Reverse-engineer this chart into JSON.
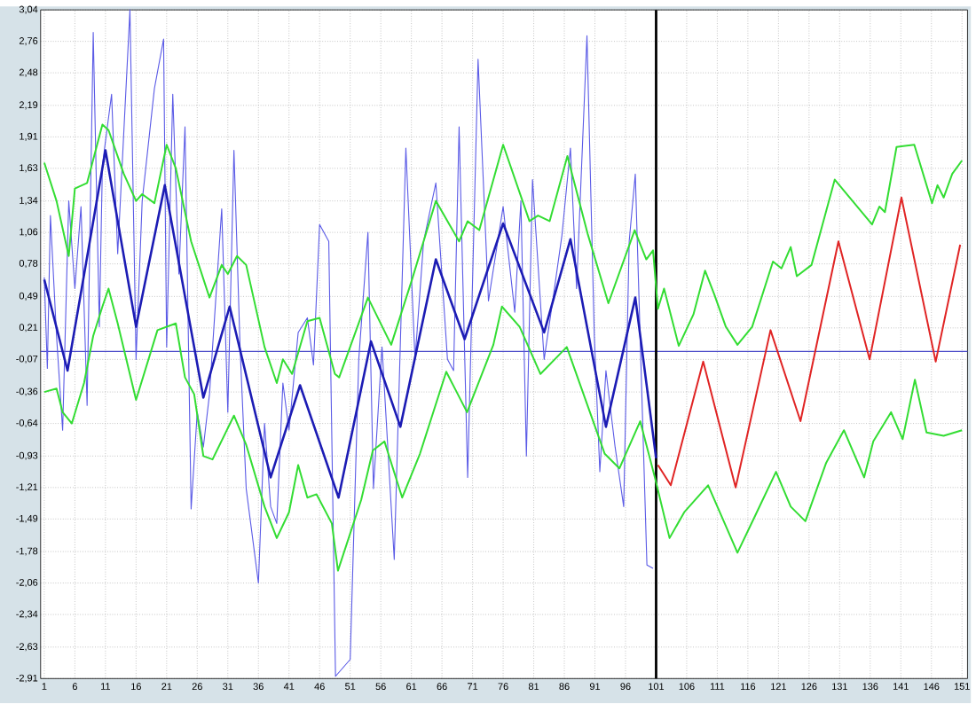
{
  "chart_data": {
    "type": "line",
    "xlim": [
      0.4,
      151.9
    ],
    "ylim": [
      -2.91,
      3.04
    ],
    "xticks": [
      1,
      6,
      11,
      16,
      21,
      26,
      31,
      36,
      41,
      46,
      51,
      56,
      61,
      66,
      71,
      76,
      81,
      86,
      91,
      96,
      101,
      106,
      111,
      116,
      121,
      126,
      131,
      136,
      141,
      146,
      151
    ],
    "yticks": [
      {
        "value": 3.04,
        "label": "3,04"
      },
      {
        "value": 2.76,
        "label": "2,76"
      },
      {
        "value": 2.48,
        "label": "2,48"
      },
      {
        "value": 2.19,
        "label": "2,19"
      },
      {
        "value": 1.91,
        "label": "1,91"
      },
      {
        "value": 1.63,
        "label": "1,63"
      },
      {
        "value": 1.34,
        "label": "1,34"
      },
      {
        "value": 1.06,
        "label": "1,06"
      },
      {
        "value": 0.78,
        "label": "0,78"
      },
      {
        "value": 0.49,
        "label": "0,49"
      },
      {
        "value": 0.21,
        "label": "0,21"
      },
      {
        "value": -0.07,
        "label": "-0,07"
      },
      {
        "value": -0.36,
        "label": "-0,36"
      },
      {
        "value": -0.64,
        "label": "-0,64"
      },
      {
        "value": -0.93,
        "label": "-0,93"
      },
      {
        "value": -1.21,
        "label": "-1,21"
      },
      {
        "value": -1.49,
        "label": "-1,49"
      },
      {
        "value": -1.78,
        "label": "-1,78"
      },
      {
        "value": -2.06,
        "label": "-2,06"
      },
      {
        "value": -2.34,
        "label": "-2,34"
      },
      {
        "value": -2.63,
        "label": "-2,63"
      },
      {
        "value": -2.91,
        "label": "-2,91"
      }
    ],
    "grid": true,
    "line_style": "solid",
    "ref_lines": [
      {
        "axis": "y",
        "value": 0,
        "color": "#4a4ac8"
      },
      {
        "axis": "x",
        "value": 101,
        "color": "#000000"
      }
    ],
    "series": [
      {
        "color": "#5a5ae6",
        "x": [
          1,
          1.5,
          2,
          3,
          4,
          5,
          6,
          7,
          8,
          9,
          10,
          10.5,
          12,
          13,
          15,
          16,
          17,
          19,
          20.5,
          21,
          22,
          23,
          24,
          25,
          26,
          27,
          28,
          30,
          31,
          32,
          33,
          34,
          36,
          37,
          38,
          39,
          40,
          41,
          42.5,
          44,
          45,
          46,
          47.5,
          48.6,
          51,
          52.4,
          53.9,
          54.8,
          56.2,
          58.2,
          60.1,
          61.6,
          63,
          65,
          66.9,
          67.9,
          68.8,
          70.2,
          71.9,
          73.6,
          76,
          77.9,
          78.9,
          79.8,
          80.8,
          82.7,
          84.1,
          85.6,
          87,
          88,
          89.7,
          90.9,
          91.8,
          92.8,
          94.3,
          95.7,
          96.6,
          97.6,
          99.5,
          100.5
        ],
        "values": [
          0.66,
          -0.15,
          1.21,
          0.14,
          -0.7,
          1.34,
          0.56,
          1.29,
          -0.48,
          2.84,
          0.22,
          1.66,
          2.29,
          0.87,
          3.04,
          -0.07,
          1.34,
          2.34,
          2.78,
          0.04,
          2.29,
          0.69,
          2.0,
          -1.4,
          -0.54,
          -0.85,
          -0.38,
          1.27,
          -0.54,
          1.79,
          0.04,
          -1.22,
          -2.06,
          -0.64,
          -1.38,
          -1.53,
          -0.28,
          -0.7,
          0.17,
          0.3,
          -0.12,
          1.13,
          0.98,
          -2.89,
          -2.74,
          -0.07,
          1.06,
          -1.22,
          0.04,
          -1.85,
          1.81,
          -0.07,
          0.98,
          1.5,
          -0.07,
          -0.17,
          2.0,
          -1.12,
          2.6,
          0.45,
          1.29,
          0.35,
          1.34,
          -0.93,
          1.53,
          -0.07,
          0.45,
          1.03,
          1.81,
          0.56,
          2.81,
          0.14,
          -1.07,
          -0.17,
          -0.85,
          -1.38,
          0.98,
          1.58,
          -1.9,
          -1.93
        ]
      },
      {
        "color": "#1c1cb4",
        "x": [
          1,
          4.8,
          11,
          16,
          20.7,
          27,
          31.3,
          38,
          42.8,
          49.1,
          54.4,
          59.2,
          65,
          69.7,
          76,
          82.7,
          87,
          92.8,
          97.6,
          101
        ],
        "values": [
          0.64,
          -0.17,
          1.79,
          0.22,
          1.48,
          -0.41,
          0.4,
          -1.12,
          -0.3,
          -1.3,
          0.09,
          -0.67,
          0.82,
          0.11,
          1.14,
          0.17,
          1.0,
          -0.67,
          0.48,
          -0.95
        ]
      },
      {
        "color": "#e02424",
        "x": [
          101.3,
          103.4,
          108.7,
          114,
          119.7,
          124.6,
          130.8,
          135.9,
          141.1,
          146.7,
          150.7
        ],
        "values": [
          -1.01,
          -1.19,
          -0.09,
          -1.21,
          0.19,
          -0.62,
          0.98,
          -0.07,
          1.37,
          -0.09,
          0.95
        ]
      },
      {
        "color": "#33dd33",
        "x": [
          1,
          3,
          5,
          6,
          8,
          10.5,
          11.5,
          14,
          16,
          17,
          19,
          21,
          22.5,
          25,
          28,
          30,
          31,
          32.5,
          34,
          37,
          39,
          40,
          41.5,
          44,
          46,
          48.5,
          49.2,
          53.9,
          57.7,
          61.1,
          65,
          68.8,
          70.2,
          72.1,
          76,
          80.3,
          81.7,
          83.6,
          86.5,
          89.8,
          93.2,
          97.5,
          99.4,
          100.5,
          101.3,
          102.3,
          104.7,
          107.1,
          109,
          110.5,
          112.4,
          114.3,
          116.7,
          120.1,
          121.5,
          123,
          124,
          126.4,
          130.2,
          133.1,
          136.3,
          137.5,
          138.4,
          140.3,
          143.2,
          146.1,
          147,
          148,
          149.4,
          151
        ],
        "values": [
          1.68,
          1.34,
          0.85,
          1.45,
          1.5,
          2.02,
          1.97,
          1.58,
          1.34,
          1.4,
          1.32,
          1.84,
          1.63,
          0.98,
          0.48,
          0.77,
          0.69,
          0.85,
          0.77,
          0.04,
          -0.28,
          -0.07,
          -0.2,
          0.27,
          0.3,
          -0.2,
          -0.23,
          0.48,
          0.06,
          0.64,
          1.34,
          0.98,
          1.16,
          1.08,
          1.84,
          1.16,
          1.21,
          1.16,
          1.74,
          1.05,
          0.43,
          1.08,
          0.82,
          0.9,
          0.38,
          0.56,
          0.05,
          0.33,
          0.72,
          0.51,
          0.22,
          0.06,
          0.22,
          0.8,
          0.74,
          0.93,
          0.67,
          0.77,
          1.53,
          1.34,
          1.13,
          1.29,
          1.24,
          1.82,
          1.84,
          1.32,
          1.48,
          1.37,
          1.58,
          1.7
        ]
      },
      {
        "color": "#33dd33",
        "x": [
          1,
          3,
          4,
          5.5,
          7.5,
          9,
          10.5,
          11.5,
          13,
          16,
          19.5,
          22.5,
          24,
          25.5,
          27,
          28.5,
          32,
          34,
          37,
          39,
          41,
          42.5,
          44,
          45.5,
          48,
          49,
          52.8,
          54.7,
          56.6,
          59.5,
          62.4,
          66.7,
          70.1,
          74.4,
          75.8,
          78.7,
          82.1,
          86.4,
          92.6,
          95,
          98.4,
          100.8,
          103.2,
          105.6,
          109.5,
          114.3,
          117.2,
          120.6,
          123,
          125.4,
          128.8,
          131.7,
          135,
          136.5,
          139.4,
          141.3,
          143.3,
          145.2,
          148,
          151
        ],
        "values": [
          -0.36,
          -0.33,
          -0.54,
          -0.64,
          -0.28,
          0.14,
          0.4,
          0.56,
          0.25,
          -0.43,
          0.19,
          0.25,
          -0.23,
          -0.38,
          -0.93,
          -0.96,
          -0.57,
          -0.83,
          -1.38,
          -1.66,
          -1.43,
          -1.01,
          -1.3,
          -1.27,
          -1.53,
          -1.95,
          -1.32,
          -0.88,
          -0.8,
          -1.3,
          -0.91,
          -0.18,
          -0.54,
          0.06,
          0.4,
          0.22,
          -0.2,
          0.04,
          -0.91,
          -1.04,
          -0.62,
          -1.12,
          -1.66,
          -1.43,
          -1.19,
          -1.79,
          -1.46,
          -1.07,
          -1.38,
          -1.51,
          -0.99,
          -0.7,
          -1.12,
          -0.8,
          -0.54,
          -0.78,
          -0.25,
          -0.72,
          -0.75,
          -0.7
        ]
      }
    ]
  }
}
